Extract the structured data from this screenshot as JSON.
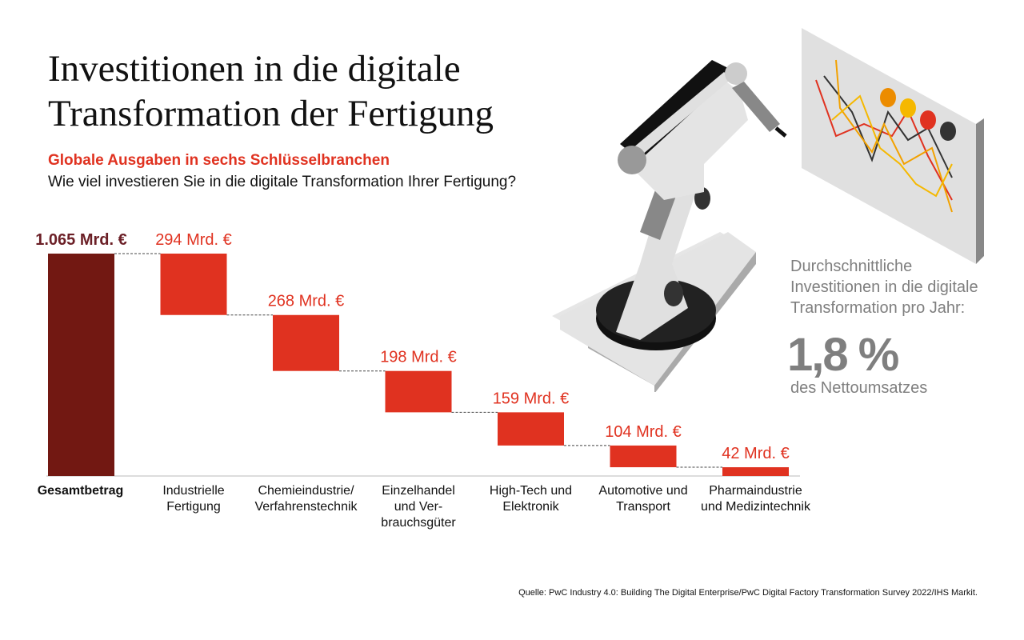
{
  "title_line1": "Investitionen in die digitale",
  "title_line2": "Transformation der Fertigung",
  "subtitle": "Globale Ausgaben in sechs Schlüsselbranchen",
  "question": "Wie viel investieren Sie in die digitale Transformation Ihrer Fertigung?",
  "side": {
    "line1": "Durchschnittliche",
    "line2": "Investitionen in die digitale",
    "line3": "Transformation pro Jahr:",
    "value": "1,8 %",
    "value_caption": "des Nettoumsatzes"
  },
  "source": "Quelle: PwC Industry 4.0: Building The Digital Enterprise/PwC Digital Factory Transformation Survey 2022/IHS Markit.",
  "colors": {
    "total": "#721812",
    "step": "#e03220",
    "label_total": "#6b1f26",
    "gray": "#7f7f7f"
  },
  "chart_data": {
    "type": "waterfall",
    "unit": "Mrd. €",
    "categories": [
      [
        "Gesamtbetrag"
      ],
      [
        "Industrielle",
        "Fertigung"
      ],
      [
        "Chemieindustrie/",
        "Verfahrenstechnik"
      ],
      [
        "Einzelhandel",
        "und Ver-",
        "brauchsgüter"
      ],
      [
        "High-Tech und",
        "Elektronik"
      ],
      [
        "Automotive und",
        "Transport"
      ],
      [
        "Pharmaindustrie",
        "und Medizintechnik"
      ]
    ],
    "values": [
      1065,
      294,
      268,
      198,
      159,
      104,
      42
    ],
    "labels": [
      "1.065 Mrd. €",
      "294 Mrd. €",
      "268 Mrd. €",
      "198 Mrd. €",
      "159 Mrd. €",
      "104 Mrd. €",
      "42 Mrd. €"
    ],
    "ylim": [
      0,
      1065
    ]
  }
}
